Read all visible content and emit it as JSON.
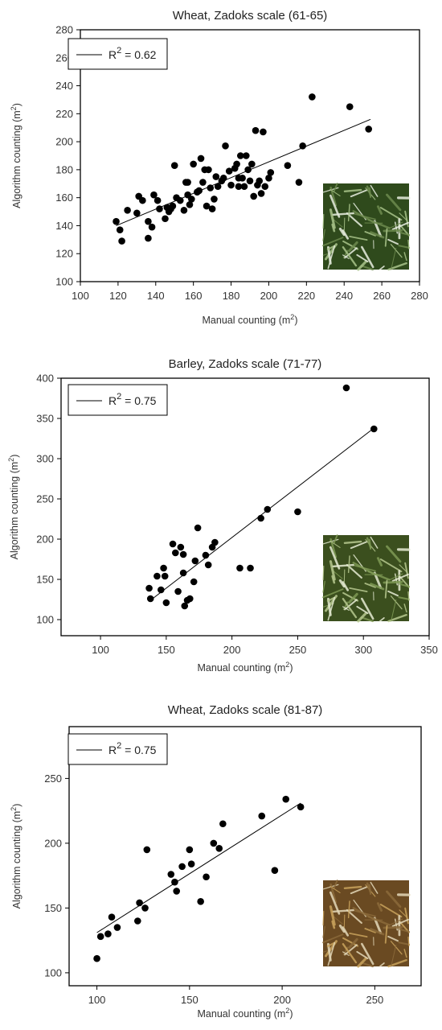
{
  "chart_data": [
    {
      "type": "scatter",
      "title": "Wheat,  Zadoks scale (61-65)",
      "xlabel": "Manual counting (m",
      "ylabel": "Algorithm counting (m",
      "label_superscript": "2",
      "xlim": [
        100,
        280
      ],
      "ylim": [
        100,
        280
      ],
      "xticks": [
        100,
        120,
        140,
        160,
        180,
        200,
        220,
        240,
        260,
        280
      ],
      "yticks": [
        100,
        120,
        140,
        160,
        180,
        200,
        220,
        240,
        260,
        280
      ],
      "legend": {
        "label": "R",
        "sup": "2",
        "suffix": " = 0.62",
        "location": "top-left"
      },
      "fit_line": {
        "x": [
          119,
          254
        ],
        "y": [
          140,
          216
        ]
      },
      "inset_image": "wheat-heads-photo",
      "points": [
        [
          119,
          143
        ],
        [
          121,
          137
        ],
        [
          122,
          129
        ],
        [
          125,
          151
        ],
        [
          130,
          149
        ],
        [
          131,
          161
        ],
        [
          133,
          158
        ],
        [
          136,
          131
        ],
        [
          136,
          143
        ],
        [
          138,
          139
        ],
        [
          139,
          162
        ],
        [
          141,
          158
        ],
        [
          142,
          152
        ],
        [
          145,
          145
        ],
        [
          146,
          153
        ],
        [
          147,
          150
        ],
        [
          148,
          152
        ],
        [
          149,
          154
        ],
        [
          150,
          183
        ],
        [
          151,
          160
        ],
        [
          153,
          158
        ],
        [
          155,
          151
        ],
        [
          156,
          171
        ],
        [
          157,
          171
        ],
        [
          157,
          162
        ],
        [
          158,
          155
        ],
        [
          159,
          159
        ],
        [
          160,
          184
        ],
        [
          162,
          164
        ],
        [
          163,
          165
        ],
        [
          164,
          188
        ],
        [
          165,
          171
        ],
        [
          166,
          180
        ],
        [
          167,
          154
        ],
        [
          168,
          180
        ],
        [
          169,
          167
        ],
        [
          170,
          152
        ],
        [
          171,
          159
        ],
        [
          172,
          175
        ],
        [
          173,
          168
        ],
        [
          175,
          172
        ],
        [
          176,
          174
        ],
        [
          177,
          197
        ],
        [
          179,
          179
        ],
        [
          180,
          169
        ],
        [
          182,
          181
        ],
        [
          183,
          184
        ],
        [
          184,
          168
        ],
        [
          184,
          174
        ],
        [
          185,
          190
        ],
        [
          186,
          174
        ],
        [
          187,
          168
        ],
        [
          188,
          190
        ],
        [
          189,
          180
        ],
        [
          190,
          172
        ],
        [
          191,
          184
        ],
        [
          192,
          161
        ],
        [
          193,
          208
        ],
        [
          194,
          169
        ],
        [
          195,
          172
        ],
        [
          196,
          163
        ],
        [
          197,
          207
        ],
        [
          198,
          168
        ],
        [
          200,
          174
        ],
        [
          201,
          178
        ],
        [
          210,
          183
        ],
        [
          216,
          171
        ],
        [
          218,
          197
        ],
        [
          223,
          232
        ],
        [
          243,
          225
        ],
        [
          253,
          209
        ]
      ]
    },
    {
      "type": "scatter",
      "title": "Barley, Zadoks scale (71-77)",
      "xlabel": "Manual counting (m",
      "ylabel": "Algorithm counting (m",
      "label_superscript": "2",
      "xlim": [
        70,
        350
      ],
      "ylim": [
        80,
        400
      ],
      "xticks": [
        100,
        150,
        200,
        250,
        300,
        350
      ],
      "yticks": [
        100,
        150,
        200,
        250,
        300,
        350,
        400
      ],
      "legend": {
        "label": "R",
        "sup": "2",
        "suffix": " = 0.75",
        "location": "top-left"
      },
      "fit_line": {
        "x": [
          138,
          308
        ],
        "y": [
          124,
          338
        ]
      },
      "inset_image": "barley-heads-photo",
      "points": [
        [
          137,
          139
        ],
        [
          138,
          126
        ],
        [
          143,
          154
        ],
        [
          146,
          137
        ],
        [
          148,
          164
        ],
        [
          149,
          154
        ],
        [
          150,
          121
        ],
        [
          155,
          194
        ],
        [
          157,
          183
        ],
        [
          159,
          135
        ],
        [
          161,
          190
        ],
        [
          163,
          181
        ],
        [
          163,
          158
        ],
        [
          164,
          117
        ],
        [
          166,
          124
        ],
        [
          168,
          126
        ],
        [
          171,
          147
        ],
        [
          172,
          173
        ],
        [
          174,
          214
        ],
        [
          180,
          180
        ],
        [
          182,
          168
        ],
        [
          185,
          190
        ],
        [
          187,
          196
        ],
        [
          206,
          164
        ],
        [
          214,
          164
        ],
        [
          222,
          226
        ],
        [
          227,
          237
        ],
        [
          250,
          234
        ],
        [
          287,
          388
        ],
        [
          308,
          337
        ]
      ]
    },
    {
      "type": "scatter",
      "title": "Wheat, Zadoks scale (81-87)",
      "xlabel": "Manual counting (m",
      "ylabel": "Algorithm counting (m",
      "label_superscript": "2",
      "xlim": [
        85,
        275
      ],
      "ylim": [
        90,
        290
      ],
      "xticks": [
        100,
        150,
        200,
        250
      ],
      "yticks": [
        100,
        150,
        200,
        250
      ],
      "legend": {
        "label": "R",
        "sup": "2",
        "suffix": " = 0.75",
        "location": "top-left"
      },
      "fit_line": {
        "x": [
          100,
          210
        ],
        "y": [
          131,
          231
        ]
      },
      "inset_image": "ripe-wheat-heads-photo",
      "points": [
        [
          100,
          111
        ],
        [
          102,
          128
        ],
        [
          106,
          130
        ],
        [
          108,
          143
        ],
        [
          111,
          135
        ],
        [
          122,
          140
        ],
        [
          123,
          154
        ],
        [
          126,
          150
        ],
        [
          127,
          195
        ],
        [
          140,
          176
        ],
        [
          142,
          170
        ],
        [
          143,
          163
        ],
        [
          146,
          182
        ],
        [
          150,
          195
        ],
        [
          151,
          184
        ],
        [
          156,
          155
        ],
        [
          159,
          174
        ],
        [
          163,
          200
        ],
        [
          166,
          196
        ],
        [
          168,
          215
        ],
        [
          189,
          221
        ],
        [
          196,
          179
        ],
        [
          202,
          234
        ],
        [
          210,
          228
        ]
      ]
    }
  ]
}
